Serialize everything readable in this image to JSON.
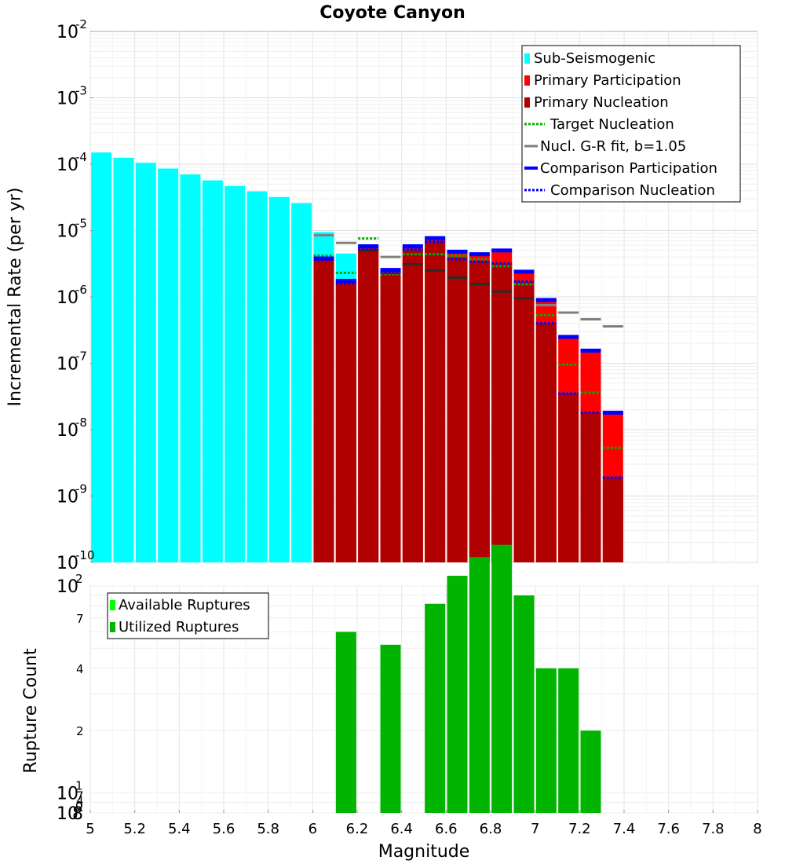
{
  "chart_data": {
    "title": "Coyote Canyon",
    "xlabel": "Magnitude",
    "x_ticks": [
      "5",
      "5.2",
      "5.4",
      "5.6",
      "5.8",
      "6",
      "6.2",
      "6.4",
      "6.6",
      "6.8",
      "7",
      "7.2",
      "7.4",
      "7.6",
      "7.8",
      "8"
    ],
    "xlim": [
      5,
      8
    ],
    "top": {
      "type": "bar",
      "ylabel": "Incremental Rate (per yr)",
      "yscale": "log",
      "ylim": [
        1e-10,
        0.01
      ],
      "y_ticks": [
        {
          "base": "10",
          "exp": "-2"
        },
        {
          "base": "10",
          "exp": "-3"
        },
        {
          "base": "10",
          "exp": "-4"
        },
        {
          "base": "10",
          "exp": "-5"
        },
        {
          "base": "10",
          "exp": "-6"
        },
        {
          "base": "10",
          "exp": "-7"
        },
        {
          "base": "10",
          "exp": "-8"
        },
        {
          "base": "10",
          "exp": "-9"
        },
        {
          "base": "10",
          "exp": "-10"
        }
      ],
      "legend": [
        {
          "label": "Sub-Seismogenic",
          "style": "box",
          "color": "#00ffff"
        },
        {
          "label": "Primary Participation",
          "style": "box",
          "color": "#ff0000"
        },
        {
          "label": "Primary Nucleation",
          "style": "box",
          "color": "#b00000"
        },
        {
          "label": "Target Nucleation",
          "style": "dotted",
          "color": "#00b000"
        },
        {
          "label": "Nucl. G-R fit, b=1.05",
          "style": "solid",
          "color": "#808080"
        },
        {
          "label": "Comparison Participation",
          "style": "thick",
          "color": "#0000ff"
        },
        {
          "label": "Comparison Nucleation",
          "style": "dotted",
          "color": "#0000ff"
        }
      ],
      "sub_seismogenic": {
        "name": "Sub-Seismogenic",
        "color": "#00ffff",
        "x": [
          5.05,
          5.15,
          5.25,
          5.35,
          5.45,
          5.55,
          5.65,
          5.75,
          5.85,
          5.95,
          6.05,
          6.15
        ],
        "values": [
          0.00015,
          0.000125,
          0.000105,
          8.6e-05,
          7e-05,
          5.7e-05,
          4.7e-05,
          3.9e-05,
          3.2e-05,
          2.6e-05,
          9.5e-06,
          4.5e-06
        ]
      },
      "mag_bins": [
        6.05,
        6.15,
        6.25,
        6.35,
        6.45,
        6.55,
        6.65,
        6.75,
        6.85,
        6.95,
        7.05,
        7.15,
        7.25,
        7.35
      ],
      "primary_participation": {
        "name": "Primary Participation",
        "color": "#ff0000",
        "values": [
          3.8e-06,
          1.75e-06,
          5.8e-06,
          2.55e-06,
          5.8e-06,
          7.7e-06,
          4.8e-06,
          4.4e-06,
          5e-06,
          2.4e-06,
          9e-07,
          2.5e-07,
          1.55e-07,
          1.8e-08
        ]
      },
      "primary_nucleation": {
        "name": "Primary Nucleation",
        "color": "#b00000",
        "values": [
          3.6e-06,
          1.6e-06,
          5.3e-06,
          2.3e-06,
          5.2e-06,
          6.8e-06,
          3.9e-06,
          3.4e-06,
          3.2e-06,
          1.7e-06,
          4e-07,
          3.5e-08,
          1.8e-08,
          1.9e-09
        ]
      },
      "target_nucleation": {
        "name": "Target Nucleation",
        "color": "#00b000",
        "values": [
          4.2e-06,
          2.3e-06,
          7.6e-06,
          2.2e-06,
          4.4e-06,
          4.4e-06,
          4.2e-06,
          3.7e-06,
          2.9e-06,
          1.55e-06,
          5.3e-07,
          9.5e-08,
          3.6e-08,
          5.3e-09
        ]
      },
      "gr_fit": {
        "name": "Nucl. G-R fit, b=1.05",
        "color": "#808080",
        "values": [
          8.5e-06,
          6.5e-06,
          5e-06,
          4e-06,
          3.1e-06,
          2.5e-06,
          1.95e-06,
          1.55e-06,
          1.2e-06,
          9.5e-07,
          7.5e-07,
          5.8e-07,
          4.6e-07,
          3.6e-07
        ]
      },
      "comparison_participation": {
        "name": "Comparison Participation",
        "color": "#0000ff",
        "values": [
          3.8e-06,
          1.75e-06,
          5.8e-06,
          2.55e-06,
          5.8e-06,
          7.7e-06,
          4.8e-06,
          4.4e-06,
          5e-06,
          2.4e-06,
          9e-07,
          2.5e-07,
          1.55e-07,
          1.8e-08
        ]
      },
      "comparison_nucleation": {
        "name": "Comparison Nucleation",
        "color": "#0000ff",
        "values": [
          3.6e-06,
          1.6e-06,
          5.3e-06,
          2.3e-06,
          5.2e-06,
          6.8e-06,
          3.7e-06,
          3.4e-06,
          3.2e-06,
          1.7e-06,
          4e-07,
          3.5e-08,
          1.8e-08,
          1.9e-09
        ]
      }
    },
    "bottom": {
      "type": "bar",
      "ylabel": "Rupture Count",
      "yscale": "log",
      "ylim": [
        8,
        100
      ],
      "y_major": [
        {
          "base": "10",
          "exp": "0"
        },
        {
          "base": "10",
          "exp": "1"
        },
        {
          "base": "10",
          "exp": "2"
        }
      ],
      "y_minor": [
        "8",
        "2",
        "4",
        "7",
        "2",
        "4",
        "7"
      ],
      "legend": [
        {
          "label": "Available Ruptures",
          "color": "#00ff00"
        },
        {
          "label": "Utilized Ruptures",
          "color": "#00b400"
        }
      ],
      "series": [
        {
          "name": "Utilized Ruptures",
          "color": "#00b400",
          "x": [
            6.15,
            6.35,
            6.55,
            6.65,
            6.75,
            6.85,
            6.95,
            7.05,
            7.15,
            7.25
          ],
          "values": [
            60,
            52,
            82,
            112,
            138,
            158,
            90,
            40,
            40,
            20
          ]
        }
      ]
    }
  }
}
